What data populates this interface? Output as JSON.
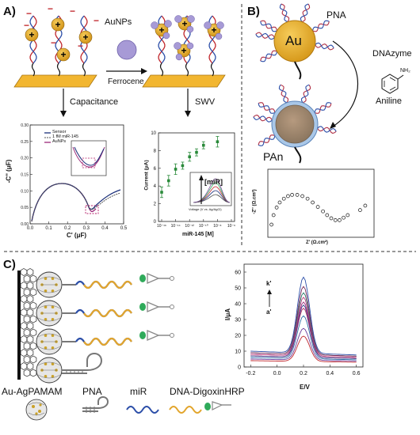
{
  "panel_a": {
    "label": "A)",
    "aunps_label": "AuNPs",
    "ferrocene_label": "Ferrocene",
    "capacitance_label": "Capacitance",
    "swv_label": "SWV",
    "cap_chart": {
      "ylabel": "-C'' (μF)",
      "xlabel": "C' (μF)",
      "legend": [
        "Sensor",
        "1 fM miR-145",
        "AuNPs"
      ],
      "xticks": [
        "0.0",
        "0.1",
        "0.2",
        "0.3",
        "0.4",
        "0.5"
      ],
      "yticks": [
        "0.00",
        "0.05",
        "0.10",
        "0.15",
        "0.20",
        "0.25",
        "0.30"
      ],
      "inset_xticks": [
        "0.24",
        "0.26",
        "0.28"
      ],
      "inset_yticks": [
        "0.15",
        "0.20"
      ]
    },
    "swv_chart": {
      "ylabel": "Current (μA)",
      "xlabel": "miR-145 [M]",
      "yticks": [
        "0",
        "2",
        "4",
        "6",
        "8",
        "10"
      ],
      "xticks": [
        "10⁻¹⁶",
        "10⁻¹⁴",
        "10⁻¹²",
        "10⁻¹⁰",
        "10⁻⁸",
        "10⁻⁶"
      ],
      "inset_label": "[miR]",
      "inset_ylabel": "Current (μA)",
      "inset_xlabel": "Voltage (V vs. Ag/AgCl)"
    }
  },
  "panel_b": {
    "label": "B)",
    "pna_label": "PNA",
    "au_label": "Au",
    "dnazyme_label": "DNAzyme",
    "aniline_label": "Aniline",
    "nh2_label": "NH₂",
    "pan_label": "PAn",
    "ylabel": "-Z'' (Ω.cm²)",
    "xlabel": "Z' (Ω.cm²)"
  },
  "panel_c": {
    "label": "C)",
    "legend_labels": [
      "Au-AgPAMAM",
      "PNA",
      "miR",
      "DNA-DigoxinHRP"
    ],
    "ylabel": "I/μA",
    "xlabel": "E/V",
    "k_label": "k'",
    "a_label": "a'",
    "xticks": [
      "-0.2",
      "0.0",
      "0.2",
      "0.4",
      "0.6"
    ],
    "yticks": [
      "0",
      "10",
      "20",
      "30",
      "40",
      "50",
      "60"
    ]
  },
  "chart_data": [
    {
      "type": "line",
      "title": "",
      "xlabel": "C' (μF)",
      "ylabel": "-C'' (μF)",
      "xlim": [
        0,
        0.5
      ],
      "ylim": [
        0,
        0.3
      ],
      "series": [
        {
          "name": "Sensor",
          "x": [
            0.02,
            0.05,
            0.1,
            0.15,
            0.2,
            0.25,
            0.3,
            0.35,
            0.4,
            0.45,
            0.48
          ],
          "y": [
            0.05,
            0.095,
            0.125,
            0.13,
            0.12,
            0.1,
            0.085,
            0.1,
            0.12,
            0.13,
            0.15
          ]
        },
        {
          "name": "1 fM miR-145",
          "x": [
            0.02,
            0.05,
            0.1,
            0.15,
            0.2,
            0.25,
            0.3,
            0.35,
            0.4,
            0.45,
            0.48
          ],
          "y": [
            0.05,
            0.095,
            0.125,
            0.13,
            0.12,
            0.1,
            0.08,
            0.095,
            0.12,
            0.13,
            0.15
          ]
        },
        {
          "name": "AuNPs",
          "x": [
            0.02,
            0.05,
            0.1,
            0.15,
            0.2,
            0.25,
            0.3,
            0.33
          ],
          "y": [
            0.05,
            0.095,
            0.125,
            0.13,
            0.12,
            0.1,
            0.075,
            0.1
          ]
        }
      ]
    },
    {
      "type": "scatter",
      "title": "",
      "xlabel": "miR-145 [M]",
      "ylabel": "Current (μA)",
      "xscale": "log",
      "ylim": [
        0,
        10
      ],
      "series": [
        {
          "name": "",
          "x": [
            1e-16,
            1e-15,
            1e-14,
            1e-13,
            1e-12,
            1e-11,
            1e-10,
            1e-08
          ],
          "y": [
            3.3,
            4.6,
            5.9,
            6.3,
            7.3,
            7.8,
            8.6,
            9.0
          ],
          "err": [
            0.6,
            0.6,
            0.6,
            0.4,
            0.5,
            0.4,
            0.4,
            0.6
          ]
        }
      ]
    },
    {
      "type": "scatter",
      "title": "",
      "xlabel": "Z' (Ω.cm²)",
      "ylabel": "-Z'' (Ω.cm²)",
      "series": [
        {
          "name": "",
          "x": [
            0.02,
            0.04,
            0.07,
            0.1,
            0.14,
            0.18,
            0.22,
            0.27,
            0.32,
            0.37,
            0.42,
            0.47,
            0.52,
            0.56,
            0.6,
            0.64,
            0.68,
            0.72,
            0.76,
            0.88,
            0.93
          ],
          "y": [
            0.15,
            0.3,
            0.42,
            0.5,
            0.56,
            0.6,
            0.62,
            0.62,
            0.6,
            0.56,
            0.5,
            0.43,
            0.36,
            0.3,
            0.25,
            0.22,
            0.22,
            0.26,
            0.3,
            0.38,
            0.45
          ]
        }
      ]
    },
    {
      "type": "line",
      "title": "",
      "xlabel": "E/V",
      "ylabel": "I/μA",
      "xlim": [
        -0.25,
        0.65
      ],
      "ylim": [
        0,
        65
      ],
      "series": [
        {
          "name": "a'",
          "peak": 20,
          "base": 4
        },
        {
          "name": "",
          "peak": 25,
          "base": 5
        },
        {
          "name": "",
          "peak": 33,
          "base": 6
        },
        {
          "name": "",
          "peak": 38,
          "base": 7
        },
        {
          "name": "",
          "peak": 40,
          "base": 7
        },
        {
          "name": "",
          "peak": 42,
          "base": 8
        },
        {
          "name": "",
          "peak": 45,
          "base": 8
        },
        {
          "name": "",
          "peak": 48,
          "base": 9
        },
        {
          "name": "",
          "peak": 52,
          "base": 9
        },
        {
          "name": "k'",
          "peak": 58,
          "base": 10
        }
      ],
      "peak_position": 0.2
    }
  ]
}
